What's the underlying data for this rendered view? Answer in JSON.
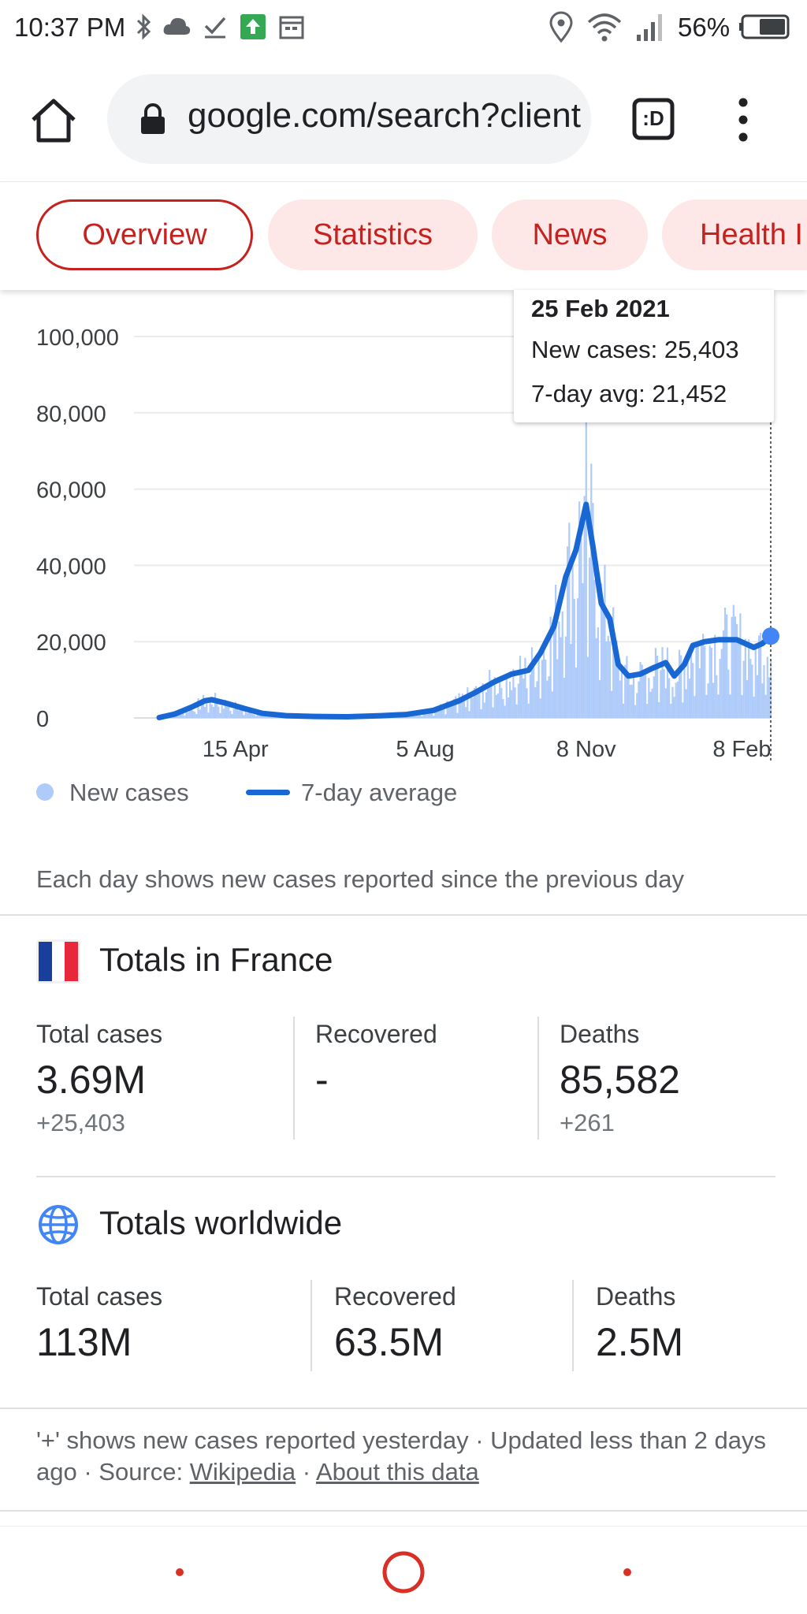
{
  "status_bar": {
    "time": "10:37 PM",
    "battery": "56%",
    "icons": [
      "bluetooth-icon",
      "cloud-icon",
      "check-icon",
      "upload-icon",
      "calendar-icon",
      "location-icon",
      "wifi-icon",
      "signal-icon",
      "battery-icon"
    ]
  },
  "toolbar": {
    "url": "google.com/search?client=ms-android",
    "tab_label": ":D"
  },
  "tabs": [
    {
      "label": "Overview",
      "active": true
    },
    {
      "label": "Statistics",
      "active": false
    },
    {
      "label": "News",
      "active": false
    },
    {
      "label": "Health I",
      "active": false
    }
  ],
  "chart_data": {
    "type": "bar",
    "y_ticks": [
      "100,000",
      "80,000",
      "60,000",
      "40,000",
      "20,000",
      "0"
    ],
    "y_tick_values": [
      100000,
      80000,
      60000,
      40000,
      20000,
      0
    ],
    "ylim": [
      0,
      100000
    ],
    "x_ticks": [
      "15 Apr",
      "5 Aug",
      "8 Nov",
      "8 Feb"
    ],
    "grid": true,
    "series": [
      {
        "name": "New cases",
        "kind": "bar",
        "color": "#aecbfa"
      },
      {
        "name": "7-day average",
        "kind": "line",
        "color": "#1967d2"
      }
    ],
    "seven_day_avg": [
      [
        "2020-03-01",
        100
      ],
      [
        "2020-03-10",
        1000
      ],
      [
        "2020-03-20",
        2800
      ],
      [
        "2020-03-28",
        4500
      ],
      [
        "2020-04-01",
        4800
      ],
      [
        "2020-04-10",
        3800
      ],
      [
        "2020-04-20",
        2500
      ],
      [
        "2020-05-01",
        1200
      ],
      [
        "2020-05-15",
        600
      ],
      [
        "2020-06-01",
        400
      ],
      [
        "2020-06-20",
        300
      ],
      [
        "2020-07-10",
        600
      ],
      [
        "2020-07-25",
        900
      ],
      [
        "2020-08-10",
        2000
      ],
      [
        "2020-08-25",
        4500
      ],
      [
        "2020-09-05",
        7000
      ],
      [
        "2020-09-15",
        9500
      ],
      [
        "2020-09-25",
        11500
      ],
      [
        "2020-10-05",
        12500
      ],
      [
        "2020-10-12",
        17000
      ],
      [
        "2020-10-20",
        24000
      ],
      [
        "2020-10-27",
        37000
      ],
      [
        "2020-11-02",
        44000
      ],
      [
        "2020-11-08",
        56000
      ],
      [
        "2020-11-12",
        45000
      ],
      [
        "2020-11-17",
        30000
      ],
      [
        "2020-11-22",
        26000
      ],
      [
        "2020-11-27",
        14000
      ],
      [
        "2020-12-03",
        11000
      ],
      [
        "2020-12-10",
        11500
      ],
      [
        "2020-12-17",
        13000
      ],
      [
        "2020-12-25",
        14500
      ],
      [
        "2020-12-30",
        11000
      ],
      [
        "2021-01-05",
        14000
      ],
      [
        "2021-01-10",
        19000
      ],
      [
        "2021-01-17",
        20000
      ],
      [
        "2021-01-25",
        20500
      ],
      [
        "2021-02-05",
        20500
      ],
      [
        "2021-02-15",
        18500
      ],
      [
        "2021-02-20",
        19500
      ],
      [
        "2021-02-25",
        21452
      ]
    ],
    "new_cases_peak": 79000,
    "tooltip": {
      "date": "25 Feb 2021",
      "new_cases": "New cases: 25,403",
      "avg": "7-day avg: 21,452"
    }
  },
  "legend": {
    "new_cases": "New cases",
    "avg": "7-day average"
  },
  "note": "Each day shows new cases reported since the previous day",
  "france": {
    "title": "Totals in France",
    "stats": [
      {
        "label": "Total cases",
        "value": "3.69M",
        "delta": "+25,403"
      },
      {
        "label": "Recovered",
        "value": "-",
        "delta": ""
      },
      {
        "label": "Deaths",
        "value": "85,582",
        "delta": "+261"
      }
    ]
  },
  "worldwide": {
    "title": "Totals worldwide",
    "stats": [
      {
        "label": "Total cases",
        "value": "113M"
      },
      {
        "label": "Recovered",
        "value": "63.5M"
      },
      {
        "label": "Deaths",
        "value": "2.5M"
      }
    ]
  },
  "footer": {
    "line": "'+' shows new cases reported yesterday  ·  Updated less than 2 days ago  ·  Source: ",
    "source_link": "Wikipedia",
    "sep": "  ·  ",
    "about_link": "About this data"
  }
}
